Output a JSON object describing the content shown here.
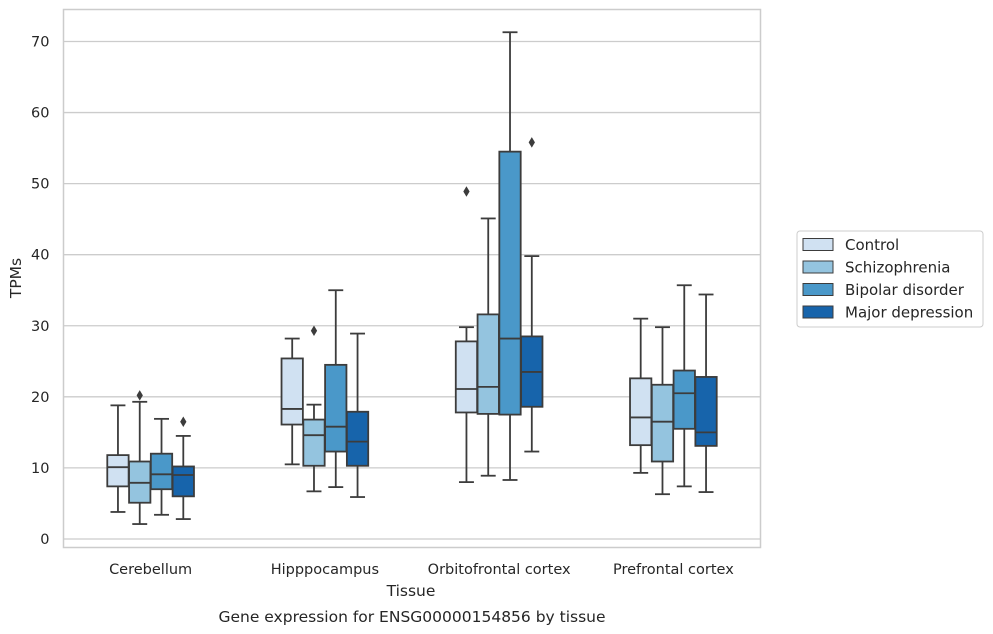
{
  "chart_data": {
    "type": "box",
    "xlabel": "Tissue",
    "ylabel": "TPMs",
    "caption": "Gene expression for ENSG00000154856 by tissue",
    "ylim": [
      -1.2,
      74.5
    ],
    "yticks": [
      0,
      10,
      20,
      30,
      40,
      50,
      60,
      70
    ],
    "grid": "horizontal",
    "legend_position": "right",
    "categories": [
      "Cerebellum",
      "Hipppocampus",
      "Orbitofrontal cortex",
      "Prefrontal cortex"
    ],
    "series": [
      {
        "name": "Control",
        "color": "#d0e1f2",
        "boxes": [
          {
            "whislo": 3.8,
            "q1": 7.4,
            "med": 10.1,
            "q3": 11.8,
            "whishi": 18.8,
            "fliers": []
          },
          {
            "whislo": 10.5,
            "q1": 16.1,
            "med": 18.3,
            "q3": 25.4,
            "whishi": 28.2,
            "fliers": []
          },
          {
            "whislo": 8.0,
            "q1": 17.8,
            "med": 21.1,
            "q3": 27.8,
            "whishi": 29.8,
            "fliers": [
              48.9
            ]
          },
          {
            "whislo": 9.3,
            "q1": 13.2,
            "med": 17.1,
            "q3": 22.6,
            "whishi": 31.0,
            "fliers": []
          }
        ]
      },
      {
        "name": "Schizophrenia",
        "color": "#94c4df",
        "boxes": [
          {
            "whislo": 2.1,
            "q1": 5.1,
            "med": 7.9,
            "q3": 10.9,
            "whishi": 19.3,
            "fliers": [
              20.2
            ]
          },
          {
            "whislo": 6.7,
            "q1": 10.3,
            "med": 14.6,
            "q3": 16.8,
            "whishi": 18.9,
            "fliers": [
              29.3
            ]
          },
          {
            "whislo": 8.9,
            "q1": 17.6,
            "med": 21.4,
            "q3": 31.6,
            "whishi": 45.1,
            "fliers": []
          },
          {
            "whislo": 6.3,
            "q1": 10.9,
            "med": 16.5,
            "q3": 21.7,
            "whishi": 29.8,
            "fliers": []
          }
        ]
      },
      {
        "name": "Bipolar disorder",
        "color": "#4a98c9",
        "boxes": [
          {
            "whislo": 3.4,
            "q1": 7.0,
            "med": 9.1,
            "q3": 12.0,
            "whishi": 16.9,
            "fliers": []
          },
          {
            "whislo": 7.3,
            "q1": 12.3,
            "med": 15.8,
            "q3": 24.5,
            "whishi": 35.0,
            "fliers": []
          },
          {
            "whislo": 8.3,
            "q1": 17.5,
            "med": 28.2,
            "q3": 54.5,
            "whishi": 71.3,
            "fliers": []
          },
          {
            "whislo": 7.4,
            "q1": 15.5,
            "med": 20.5,
            "q3": 23.7,
            "whishi": 35.7,
            "fliers": []
          }
        ]
      },
      {
        "name": "Major depression",
        "color": "#1764ab",
        "boxes": [
          {
            "whislo": 2.8,
            "q1": 6.0,
            "med": 9.0,
            "q3": 10.2,
            "whishi": 14.5,
            "fliers": [
              16.5
            ]
          },
          {
            "whislo": 5.9,
            "q1": 10.3,
            "med": 13.7,
            "q3": 17.9,
            "whishi": 28.9,
            "fliers": []
          },
          {
            "whislo": 12.3,
            "q1": 18.6,
            "med": 23.5,
            "q3": 28.5,
            "whishi": 39.8,
            "fliers": [
              55.8
            ]
          },
          {
            "whislo": 6.6,
            "q1": 13.1,
            "med": 15.0,
            "q3": 22.8,
            "whishi": 34.4,
            "fliers": []
          }
        ]
      }
    ]
  }
}
